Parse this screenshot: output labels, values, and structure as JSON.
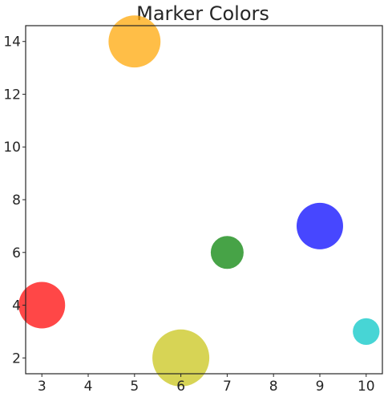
{
  "chart_data": {
    "type": "scatter",
    "title": "Marker Colors",
    "xlabel": "",
    "ylabel": "",
    "xlim": [
      2.65,
      10.35
    ],
    "ylim": [
      1.4,
      14.6
    ],
    "xticks": [
      3,
      4,
      5,
      6,
      7,
      8,
      9,
      10
    ],
    "yticks": [
      2,
      4,
      6,
      8,
      10,
      12,
      14
    ],
    "grid": false,
    "points": [
      {
        "x": 3,
        "y": 4,
        "size": 1.0,
        "color": "#ff0000"
      },
      {
        "x": 5,
        "y": 14,
        "size": 1.25,
        "color": "#ffa500"
      },
      {
        "x": 6,
        "y": 2,
        "size": 1.5,
        "color": "#c7c413"
      },
      {
        "x": 7,
        "y": 6,
        "size": 0.5,
        "color": "#008000"
      },
      {
        "x": 9,
        "y": 7,
        "size": 1.0,
        "color": "#0000ff"
      },
      {
        "x": 10,
        "y": 3,
        "size": 0.33,
        "color": "#00c5c5"
      }
    ],
    "alpha": 0.72,
    "axes_color": "#262626"
  }
}
